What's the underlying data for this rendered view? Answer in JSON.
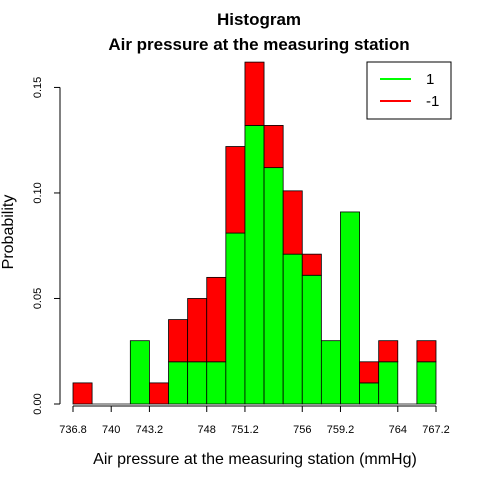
{
  "chart_data": {
    "type": "bar",
    "title": "Histogram",
    "subtitle": "Air pressure at the measuring station",
    "xlabel": "Air pressure at the measuring station (mmHg)",
    "ylabel": "Probability",
    "xlim": [
      736.8,
      767.2
    ],
    "ylim": [
      0,
      0.163
    ],
    "bin_edges": [
      736.8,
      738.4,
      740.0,
      741.6,
      743.2,
      744.8,
      746.4,
      748.0,
      749.6,
      751.2,
      752.8,
      754.4,
      756.0,
      757.6,
      759.2,
      760.8,
      762.4,
      764.0,
      765.6,
      767.2
    ],
    "x_ticks": [
      736.8,
      740,
      743.2,
      748,
      751.2,
      756,
      759.2,
      764,
      767.2
    ],
    "x_tick_labels": [
      "736.8",
      "740",
      "743.2",
      "748",
      "751.2",
      "756",
      "759.2",
      "764",
      "767.2"
    ],
    "y_ticks": [
      0.0,
      0.05,
      0.1,
      0.15
    ],
    "y_tick_labels": [
      "0.00",
      "0.05",
      "0.10",
      "0.15"
    ],
    "series": [
      {
        "name": "1",
        "color": "#00ff00",
        "values": [
          0,
          0,
          0,
          0.03,
          0,
          0.02,
          0.02,
          0.02,
          0.081,
          0.132,
          0.112,
          0.071,
          0.061,
          0.03,
          0.091,
          0.01,
          0.02,
          0,
          0.02
        ]
      },
      {
        "name": "-1",
        "color": "#ff0000",
        "values": [
          0.01,
          0,
          0,
          0,
          0.01,
          0.02,
          0.03,
          0.04,
          0.041,
          0.03,
          0.02,
          0.03,
          0.01,
          0,
          0,
          0.01,
          0.01,
          0,
          0.01
        ]
      }
    ],
    "stacked": true,
    "legend_position": "top-right",
    "grid": false
  }
}
